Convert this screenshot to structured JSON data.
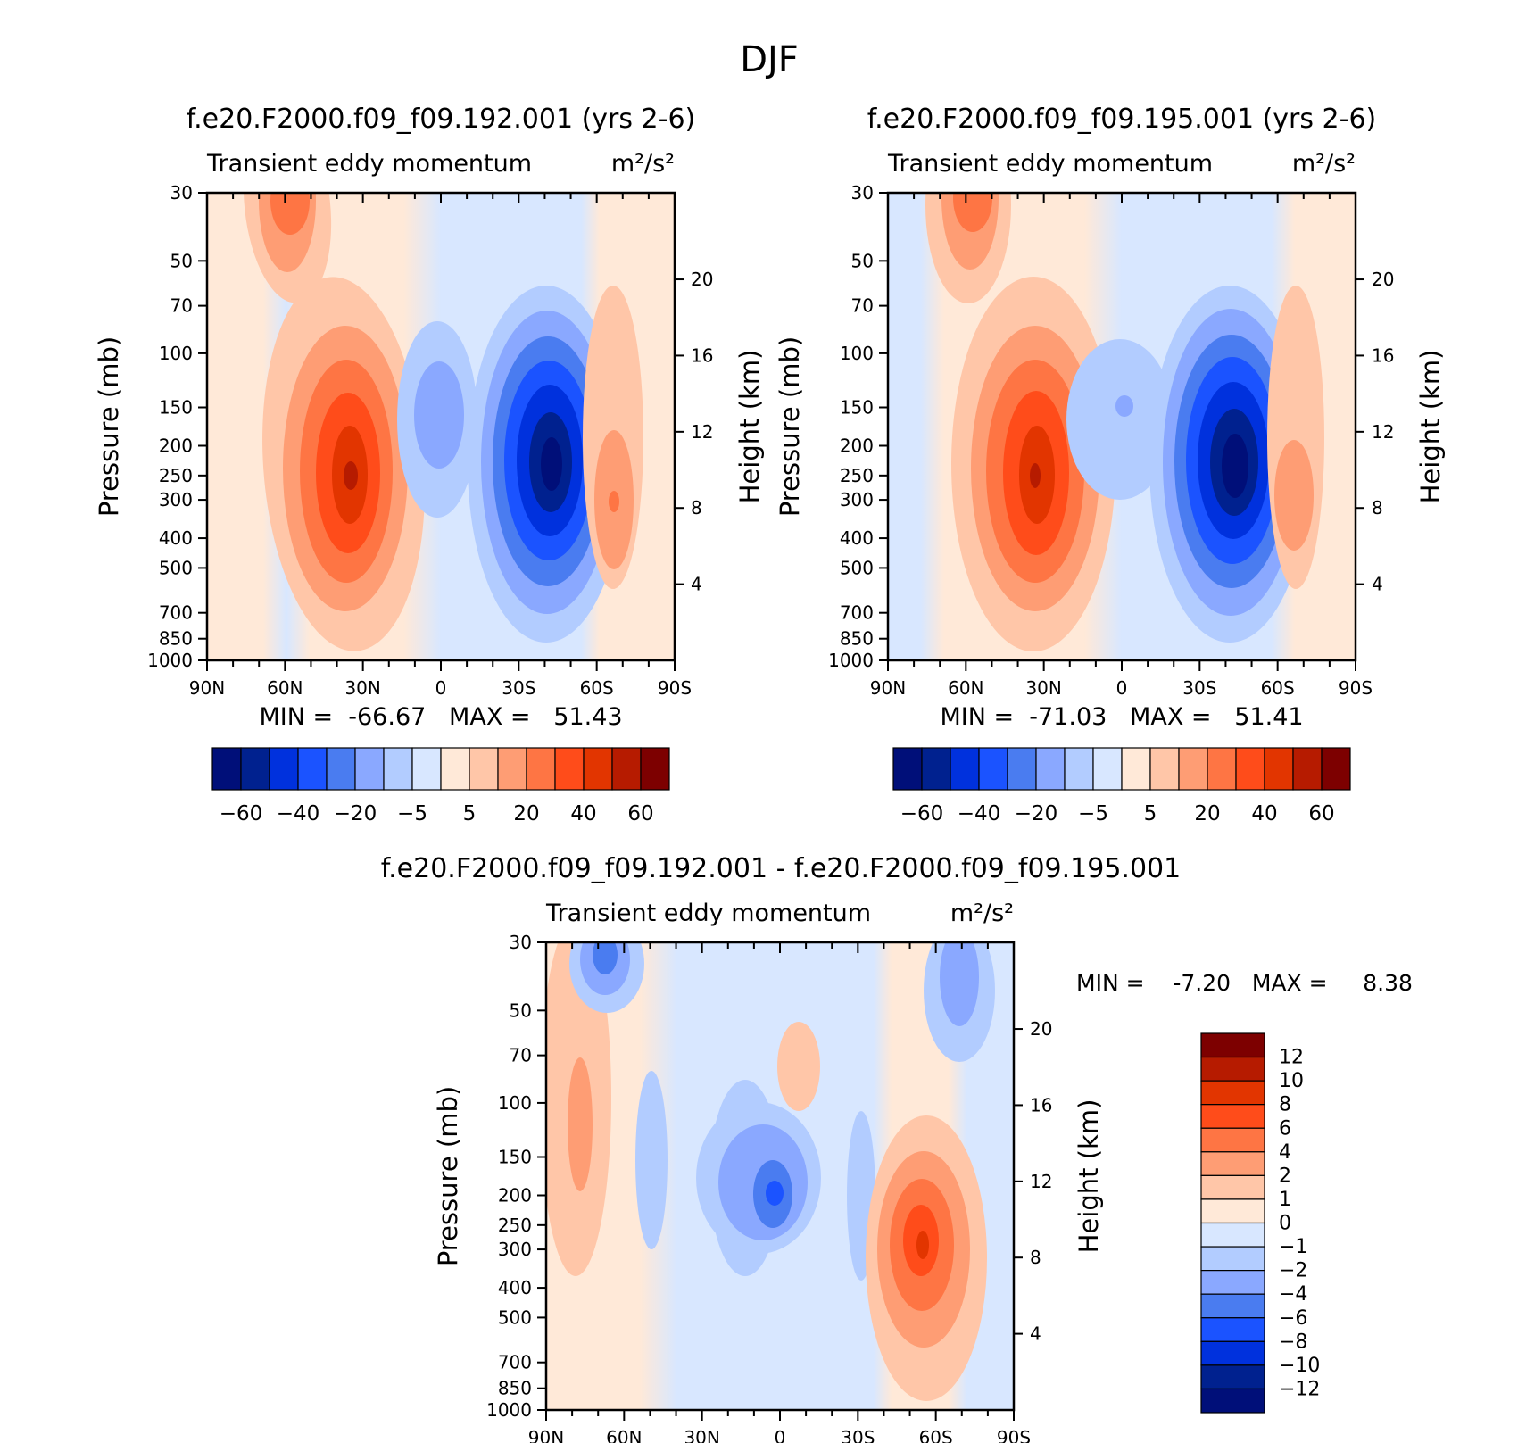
{
  "figure": {
    "title": "DJF"
  },
  "panels": [
    {
      "title": "f.e20.F2000.f09_f09.192.001 (yrs 2-6)",
      "subtitle": "Transient eddy momentum",
      "units": "m²/s²",
      "stats": "MIN =  -66.67   MAX =   51.43",
      "ylabel": "Pressure (mb)",
      "ylabel_right": "Height (km)"
    },
    {
      "title": "f.e20.F2000.f09_f09.195.001 (yrs 2-6)",
      "subtitle": "Transient eddy momentum",
      "units": "m²/s²",
      "stats": "MIN =  -71.03   MAX =   51.41",
      "ylabel": "Pressure (mb)",
      "ylabel_right": "Height (km)"
    },
    {
      "title": "f.e20.F2000.f09_f09.192.001 - f.e20.F2000.f09_f09.195.001",
      "subtitle": "Transient eddy momentum",
      "units": "m²/s²",
      "stats": "MIN =    -7.20   MAX =     8.38",
      "ylabel": "Pressure (mb)",
      "ylabel_right": "Height (km)"
    }
  ],
  "colorbars": {
    "main": {
      "colors": [
        "#000f79",
        "#00218f",
        "#0031dd",
        "#1b53ff",
        "#4a7cf0",
        "#8aa8ff",
        "#b2ccff",
        "#d8e7ff",
        "#ffe9d8",
        "#ffc6a8",
        "#fe9d74",
        "#fe7544",
        "#ff4c1a",
        "#e23500",
        "#b61b00",
        "#7d0000"
      ],
      "labels": [
        "-60",
        "-40",
        "-20",
        "-5",
        "5",
        "20",
        "40",
        "60"
      ]
    },
    "diff": {
      "colors": [
        "#000f79",
        "#00218f",
        "#0031dd",
        "#1b53ff",
        "#4a7cf0",
        "#8aa8ff",
        "#b2ccff",
        "#d8e7ff",
        "#ffe9d8",
        "#ffc6a8",
        "#fe9d74",
        "#fe7544",
        "#ff4c1a",
        "#e23500",
        "#b61b00",
        "#7d0000"
      ],
      "labels": [
        "-12",
        "-10",
        "-8",
        "-6",
        "-4",
        "-2",
        "-1",
        "0",
        "1",
        "2",
        "4",
        "6",
        "8",
        "10",
        "12"
      ]
    }
  },
  "chart_data": [
    {
      "type": "heatmap",
      "title": "f.e20.F2000.f09_f09.192.001 (yrs 2-6)",
      "x_ticks": [
        "90N",
        "60N",
        "30N",
        "0",
        "30S",
        "60S",
        "90S"
      ],
      "y_ticks": [
        30,
        50,
        70,
        100,
        150,
        200,
        250,
        300,
        400,
        500,
        700,
        850,
        1000
      ],
      "y_right_ticks": [
        4,
        8,
        12,
        16,
        20
      ],
      "xlim": [
        90,
        -90
      ],
      "ylim": [
        1000,
        30
      ],
      "yscale": "log",
      "min": -66.67,
      "max": 51.43,
      "features": [
        {
          "lat": 32,
          "p": 250,
          "value": 51.43
        },
        {
          "lat": -43,
          "p": 250,
          "value": -66.67
        },
        {
          "lat": 58,
          "p": 35,
          "value": 25
        },
        {
          "lat": -66,
          "p": 300,
          "value": 22
        },
        {
          "lat": 0,
          "p": 150,
          "value": -12
        }
      ]
    },
    {
      "type": "heatmap",
      "title": "f.e20.F2000.f09_f09.195.001 (yrs 2-6)",
      "x_ticks": [
        "90N",
        "60N",
        "30N",
        "0",
        "30S",
        "60S",
        "90S"
      ],
      "y_ticks": [
        30,
        50,
        70,
        100,
        150,
        200,
        250,
        300,
        400,
        500,
        700,
        850,
        1000
      ],
      "y_right_ticks": [
        4,
        8,
        12,
        16,
        20
      ],
      "xlim": [
        90,
        -90
      ],
      "ylim": [
        1000,
        30
      ],
      "yscale": "log",
      "min": -71.03,
      "max": 51.41,
      "features": [
        {
          "lat": 33,
          "p": 250,
          "value": 51.41
        },
        {
          "lat": -43,
          "p": 250,
          "value": -71.03
        },
        {
          "lat": 58,
          "p": 35,
          "value": 25
        },
        {
          "lat": -66,
          "p": 300,
          "value": 15
        },
        {
          "lat": 0,
          "p": 150,
          "value": -8
        }
      ]
    },
    {
      "type": "heatmap",
      "title": "f.e20.F2000.f09_f09.192.001 - f.e20.F2000.f09_f09.195.001",
      "x_ticks": [
        "90N",
        "60N",
        "30N",
        "0",
        "30S",
        "60S",
        "90S"
      ],
      "y_ticks": [
        30,
        50,
        70,
        100,
        150,
        200,
        250,
        300,
        400,
        500,
        700,
        850,
        1000
      ],
      "y_right_ticks": [
        4,
        8,
        12,
        16,
        20
      ],
      "xlim": [
        90,
        -90
      ],
      "ylim": [
        1000,
        30
      ],
      "yscale": "log",
      "min": -7.2,
      "max": 8.38,
      "features": [
        {
          "lat": 5,
          "p": 200,
          "value": -7.2
        },
        {
          "lat": -55,
          "p": 300,
          "value": 8.38
        },
        {
          "lat": 77,
          "p": 120,
          "value": 4
        },
        {
          "lat": 65,
          "p": 35,
          "value": -5
        },
        {
          "lat": -69,
          "p": 40,
          "value": -4
        }
      ]
    }
  ]
}
